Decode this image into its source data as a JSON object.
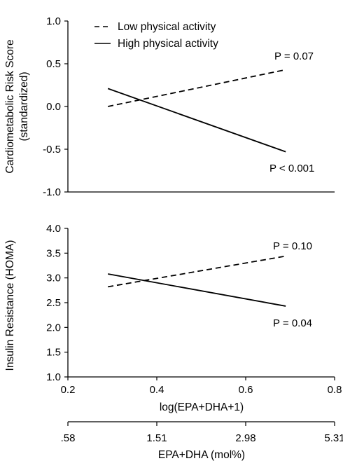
{
  "chart_data": [
    {
      "type": "line",
      "ylabel_line1": "Cardiometabolic Risk Score",
      "ylabel_line2": "(standardized)",
      "ylim": [
        -1.0,
        1.0
      ],
      "yticks": [
        "1.0",
        "0.5",
        "0.0",
        "-0.5",
        "-1.0"
      ],
      "ytick_values": [
        1.0,
        0.5,
        0.0,
        -0.5,
        -1.0
      ],
      "xlim": [
        0.2,
        0.8
      ],
      "legend_position": "top-left",
      "series": [
        {
          "name": "Low physical activity",
          "style": "dashed",
          "x": [
            0.29,
            0.69
          ],
          "y": [
            0.0,
            0.43
          ],
          "annotation": "P = 0.07"
        },
        {
          "name": "High physical activity",
          "style": "solid",
          "x": [
            0.29,
            0.69
          ],
          "y": [
            0.21,
            -0.53
          ],
          "annotation": "P < 0.001"
        }
      ]
    },
    {
      "type": "line",
      "ylabel": "Insulin Resistance (HOMA)",
      "ylim": [
        1.0,
        4.0
      ],
      "yticks": [
        "4.0",
        "3.5",
        "3.0",
        "2.5",
        "2.0",
        "1.5",
        "1.0"
      ],
      "ytick_values": [
        4.0,
        3.5,
        3.0,
        2.5,
        2.0,
        1.5,
        1.0
      ],
      "xlabel": "log(EPA+DHA+1)",
      "xlim": [
        0.2,
        0.8
      ],
      "xticks": [
        "0.2",
        "0.4",
        "0.6",
        "0.8"
      ],
      "xtick_values": [
        0.2,
        0.4,
        0.6,
        0.8
      ],
      "secondary_xlabel": "EPA+DHA (mol%)",
      "secondary_xticks": [
        ".58",
        "1.51",
        "2.98",
        "5.31"
      ],
      "series": [
        {
          "name": "Low physical activity",
          "style": "dashed",
          "x": [
            0.29,
            0.69
          ],
          "y": [
            2.82,
            3.44
          ],
          "annotation": "P = 0.10"
        },
        {
          "name": "High physical activity",
          "style": "solid",
          "x": [
            0.29,
            0.69
          ],
          "y": [
            3.08,
            2.43
          ],
          "annotation": "P = 0.04"
        }
      ]
    }
  ]
}
